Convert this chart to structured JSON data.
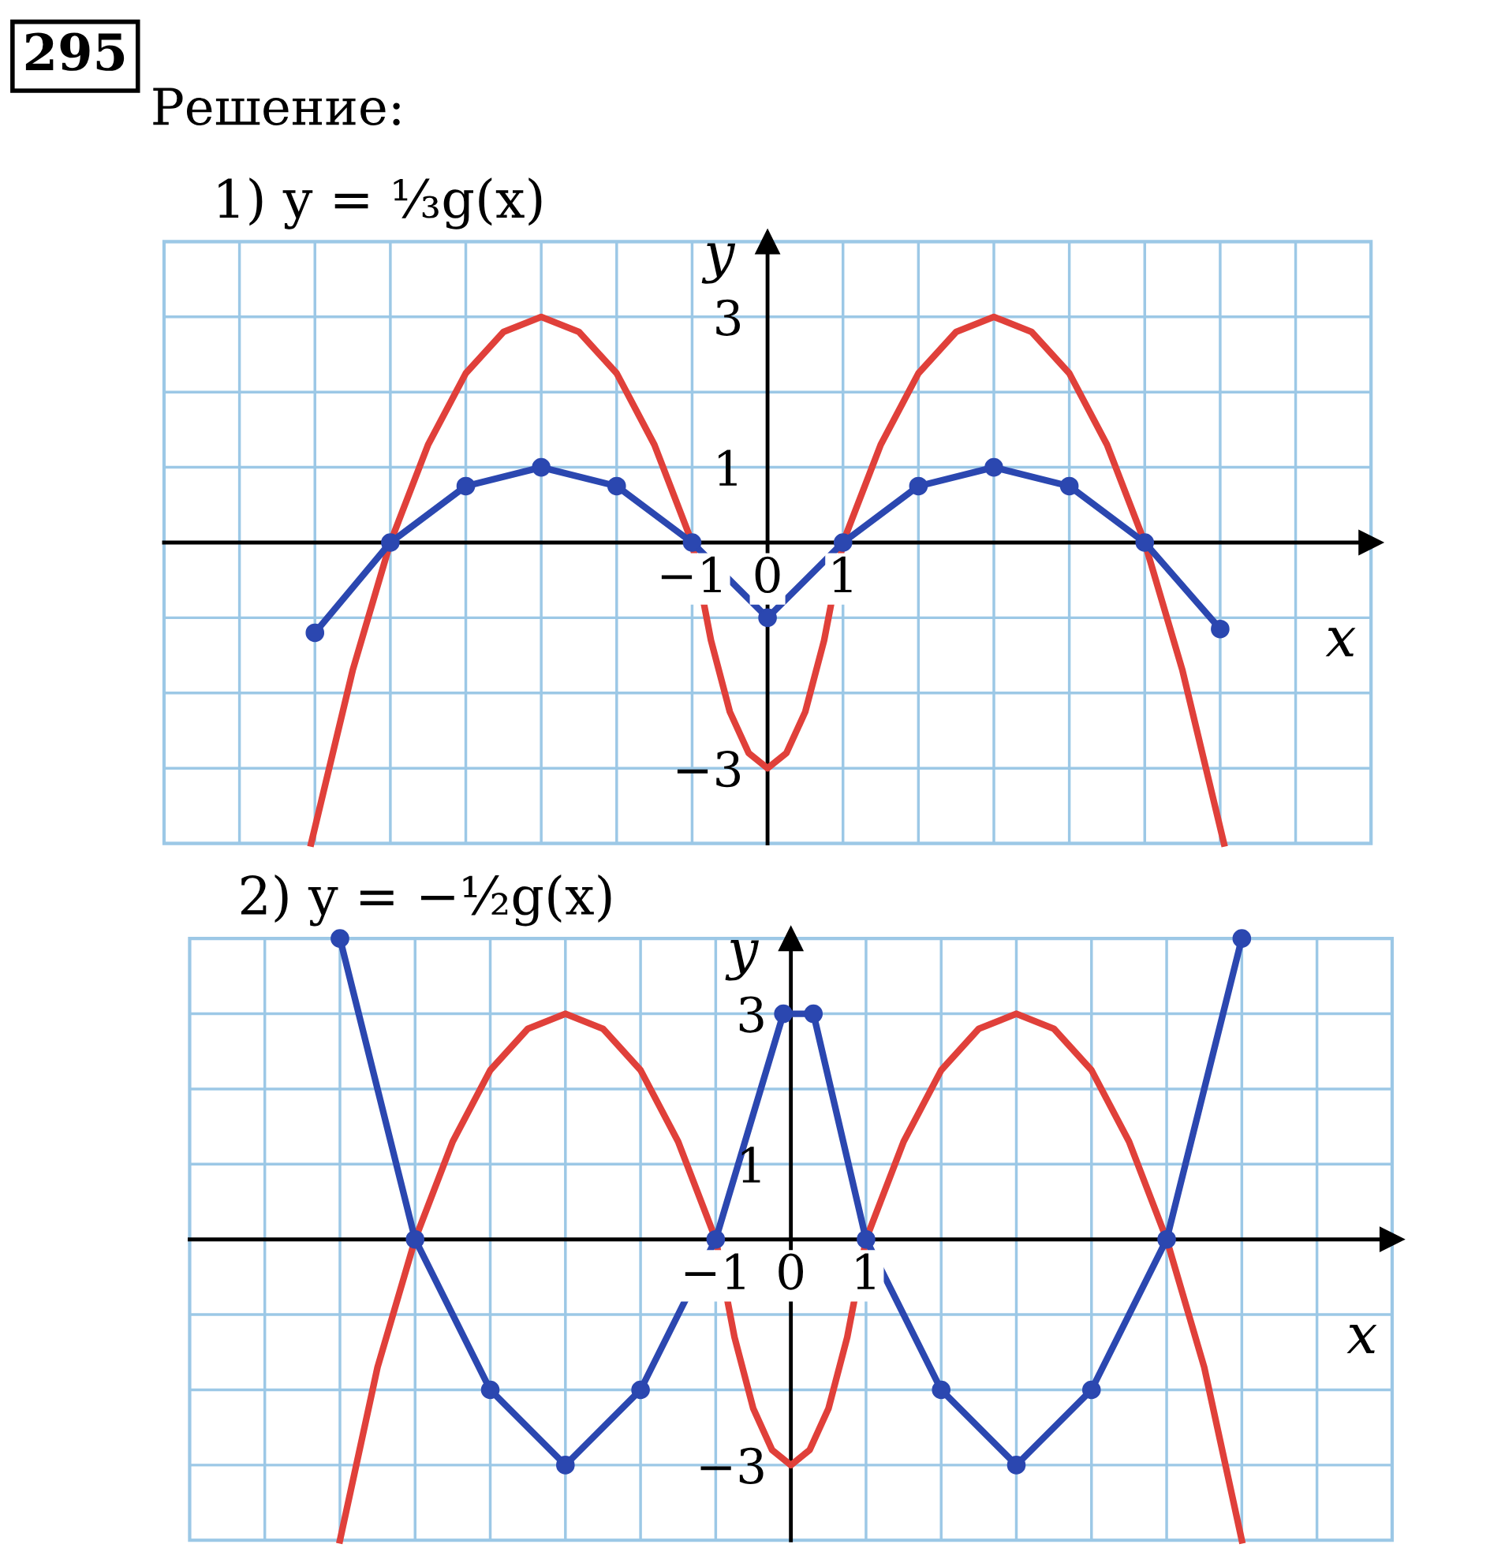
{
  "chart_data": [
    {
      "type": "line",
      "title": "1) y = ⅓g(x)",
      "xlabel": "x",
      "ylabel": "y",
      "annotations": [
        "295",
        "Решение:"
      ],
      "xlim": [
        -8,
        8
      ],
      "ylim": [
        -4,
        4
      ],
      "grid": true,
      "xticks": [
        {
          "value": -8,
          "label": null
        },
        {
          "value": -7,
          "label": null
        },
        {
          "value": -6,
          "label": null
        },
        {
          "value": -5,
          "label": null
        },
        {
          "value": -4,
          "label": null
        },
        {
          "value": -3,
          "label": null
        },
        {
          "value": -2,
          "label": null
        },
        {
          "value": -1,
          "label": "−1"
        },
        {
          "value": 0,
          "label": "0"
        },
        {
          "value": 1,
          "label": "1"
        },
        {
          "value": 2,
          "label": null
        },
        {
          "value": 3,
          "label": null
        },
        {
          "value": 4,
          "label": null
        },
        {
          "value": 5,
          "label": null
        },
        {
          "value": 6,
          "label": null
        },
        {
          "value": 7,
          "label": null
        },
        {
          "value": 8,
          "label": null
        }
      ],
      "yticks": [
        {
          "value": -4,
          "label": null
        },
        {
          "value": -3,
          "label": "−3"
        },
        {
          "value": -2,
          "label": null
        },
        {
          "value": -1,
          "label": null
        },
        {
          "value": 0,
          "label": null
        },
        {
          "value": 1,
          "label": "1"
        },
        {
          "value": 2,
          "label": null
        },
        {
          "value": 3,
          "label": "3"
        },
        {
          "value": 4,
          "label": null
        }
      ],
      "series": [
        {
          "color": "#e0403a",
          "marker": "none",
          "x": [
            -6.05,
            -5.5,
            -5,
            -4.5,
            -4,
            -3.5,
            -3,
            -2.5,
            -2,
            -1.5,
            -1,
            -0.75,
            -0.5,
            -0.25,
            0,
            0.25,
            0.5,
            0.75,
            1,
            1.5,
            2,
            2.5,
            3,
            3.5,
            4,
            4.5,
            5,
            5.5,
            6.05
          ],
          "values": [
            -4,
            -1.7,
            0,
            1.3,
            2.25,
            2.8,
            3,
            2.8,
            2.25,
            1.3,
            0,
            -1.3,
            -2.25,
            -2.8,
            -3,
            -2.8,
            -2.25,
            -1.3,
            0,
            1.3,
            2.25,
            2.8,
            3,
            2.8,
            2.25,
            1.3,
            0,
            -1.7,
            -4
          ]
        },
        {
          "color": "#2b47b0",
          "marker": "circle",
          "x": [
            -6,
            -5,
            -4,
            -3,
            -2,
            -1,
            0,
            1,
            2,
            3,
            4,
            5,
            6
          ],
          "values": [
            -1.2,
            0,
            0.75,
            1,
            0.75,
            0,
            -1,
            0,
            0.75,
            1,
            0.75,
            0,
            -1.15
          ]
        }
      ]
    },
    {
      "type": "line",
      "title": "2) y = −½g(x)",
      "xlabel": "x",
      "ylabel": "y",
      "xlim": [
        -8,
        8
      ],
      "ylim": [
        -4,
        4
      ],
      "grid": true,
      "xticks": [
        {
          "value": -8,
          "label": null
        },
        {
          "value": -7,
          "label": null
        },
        {
          "value": -6,
          "label": null
        },
        {
          "value": -5,
          "label": null
        },
        {
          "value": -4,
          "label": null
        },
        {
          "value": -3,
          "label": null
        },
        {
          "value": -2,
          "label": null
        },
        {
          "value": -1,
          "label": "−1"
        },
        {
          "value": 0,
          "label": "0"
        },
        {
          "value": 1,
          "label": "1"
        },
        {
          "value": 2,
          "label": null
        },
        {
          "value": 3,
          "label": null
        },
        {
          "value": 4,
          "label": null
        },
        {
          "value": 5,
          "label": null
        },
        {
          "value": 6,
          "label": null
        },
        {
          "value": 7,
          "label": null
        },
        {
          "value": 8,
          "label": null
        }
      ],
      "yticks": [
        {
          "value": -4,
          "label": null
        },
        {
          "value": -3,
          "label": "−3"
        },
        {
          "value": -2,
          "label": null
        },
        {
          "value": -1,
          "label": null
        },
        {
          "value": 0,
          "label": null
        },
        {
          "value": 1,
          "label": "1"
        },
        {
          "value": 2,
          "label": null
        },
        {
          "value": 3,
          "label": "3"
        },
        {
          "value": 4,
          "label": null
        }
      ],
      "series": [
        {
          "color": "#e0403a",
          "marker": "none",
          "x": [
            -6.0,
            -5.5,
            -5,
            -4.5,
            -4,
            -3.5,
            -3,
            -2.5,
            -2,
            -1.5,
            -1,
            -0.75,
            -0.5,
            -0.25,
            0,
            0.25,
            0.5,
            0.75,
            1,
            1.5,
            2,
            2.5,
            3,
            3.5,
            4,
            4.5,
            5,
            5.5,
            6.0
          ],
          "values": [
            -4,
            -1.7,
            0,
            1.3,
            2.25,
            2.8,
            3,
            2.8,
            2.25,
            1.3,
            0,
            -1.3,
            -2.25,
            -2.8,
            -3,
            -2.8,
            -2.25,
            -1.3,
            0,
            1.3,
            2.25,
            2.8,
            3,
            2.8,
            2.25,
            1.3,
            0,
            -1.7,
            -4
          ]
        },
        {
          "color": "#2b47b0",
          "marker": "circle",
          "x": [
            -6,
            -5,
            -4,
            -3,
            -2,
            -1,
            -0.1,
            0.3,
            1,
            2,
            3,
            4,
            5,
            6
          ],
          "values": [
            4,
            0,
            -2,
            -3,
            -2,
            0,
            3,
            3,
            0,
            -2,
            -3,
            -2,
            0,
            4
          ]
        }
      ]
    }
  ]
}
